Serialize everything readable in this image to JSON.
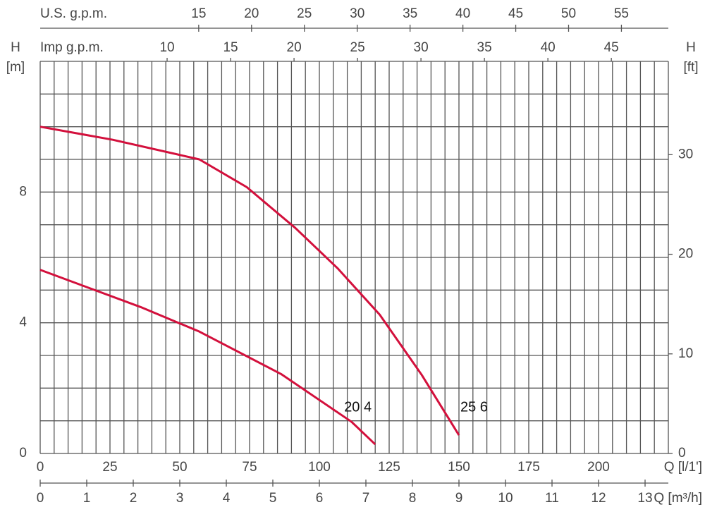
{
  "chart_data": {
    "type": "line",
    "x_label": "Q [l/1']",
    "x2_label": "Q [m³/h]",
    "top_label": "U.S. g.p.m.",
    "top2_label": "Imp g.p.m.",
    "ylabel_lines": [
      "H",
      "[m]"
    ],
    "y2label_lines": [
      "H",
      "[ft]"
    ],
    "xlim": [
      0,
      225
    ],
    "xticks": [
      0,
      25,
      50,
      75,
      100,
      125,
      150,
      175,
      200
    ],
    "x2lim": [
      0,
      13.5
    ],
    "x2ticks": [
      0,
      1,
      2,
      3,
      4,
      5,
      6,
      7,
      8,
      9,
      10,
      11,
      12,
      13
    ],
    "toplim": [
      0,
      59.44
    ],
    "topticks": [
      15,
      20,
      25,
      30,
      35,
      40,
      45,
      50,
      55
    ],
    "top2lim": [
      0,
      49.49
    ],
    "top2ticks": [
      10,
      15,
      20,
      25,
      30,
      35,
      40,
      45
    ],
    "ylim": [
      0,
      12
    ],
    "yticks": [
      0,
      4,
      8
    ],
    "y2lim": [
      0,
      39.37
    ],
    "y2ticks": [
      0,
      10,
      20,
      30
    ],
    "xgrid": [
      0,
      5,
      10,
      15,
      20,
      25,
      30,
      35,
      40,
      45,
      50,
      55,
      60,
      65,
      70,
      75,
      80,
      85,
      90,
      95,
      100,
      105,
      110,
      115,
      120,
      125,
      130,
      135,
      140,
      145,
      150,
      155,
      160,
      165,
      170,
      175,
      180,
      185,
      190,
      195,
      200,
      205,
      210,
      215,
      220,
      225
    ],
    "ygrid": [
      0,
      1,
      2,
      3,
      4,
      5,
      6,
      7,
      8,
      9,
      10,
      11,
      12
    ],
    "series": [
      {
        "name": "20 4",
        "color": "#d3103c",
        "x": [
          0,
          36,
          57,
          86.3,
          111.5,
          120
        ],
        "values": [
          5.62,
          4.48,
          3.73,
          2.43,
          0.97,
          0.28
        ]
      },
      {
        "name": "25 6",
        "color": "#d3103c",
        "x": [
          0,
          26,
          57,
          74,
          91.4,
          106.5,
          121.6,
          136.7,
          150
        ],
        "values": [
          10.0,
          9.6,
          9.0,
          8.15,
          6.9,
          5.67,
          4.25,
          2.4,
          0.56
        ]
      }
    ]
  }
}
